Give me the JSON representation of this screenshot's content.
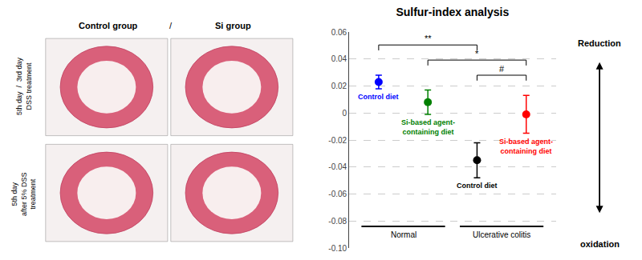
{
  "chart_data": {
    "type": "scatter",
    "title": "Sulfur-index analysis",
    "categories": [
      "Control diet",
      "Si-based agent-\ncontaining diet",
      "Control diet",
      "Si-based agent-\ncontaining diet"
    ],
    "values": [
      0.023,
      0.008,
      -0.035,
      -0.001
    ],
    "errors": [
      0.005,
      0.009,
      0.013,
      0.014
    ],
    "colors": [
      "blue",
      "green",
      "black",
      "red"
    ],
    "marker": "circle",
    "ylim": [
      -0.1,
      0.06
    ],
    "yticks": [
      0.06,
      0.04,
      0.02,
      {
        "value": 0.0,
        "label": "0"
      },
      -0.02,
      -0.04,
      -0.06,
      -0.08,
      {
        "value": -0.1,
        "label": "-0.10"
      }
    ],
    "grid": true,
    "tick_labels": "y",
    "brackets": [
      {
        "from": 0,
        "to": 2,
        "label": "**"
      },
      {
        "from": 1,
        "to": 3,
        "label": "*"
      },
      {
        "from": 2,
        "to": 3,
        "label": "#"
      }
    ],
    "groups": [
      {
        "label": "Normal",
        "from": 0,
        "to": 1
      },
      {
        "label": "Ulcerative colitis",
        "from": 2,
        "to": 3
      }
    ],
    "column_headers": [
      "Control group",
      "/",
      "Si group"
    ],
    "row_labels": [
      "5th day  /  3rd day\nDSS treatment",
      "5th day\nafter 5% DSS\ntreatment"
    ],
    "arrow_labels": [
      "Reduction",
      "oxidation"
    ]
  }
}
